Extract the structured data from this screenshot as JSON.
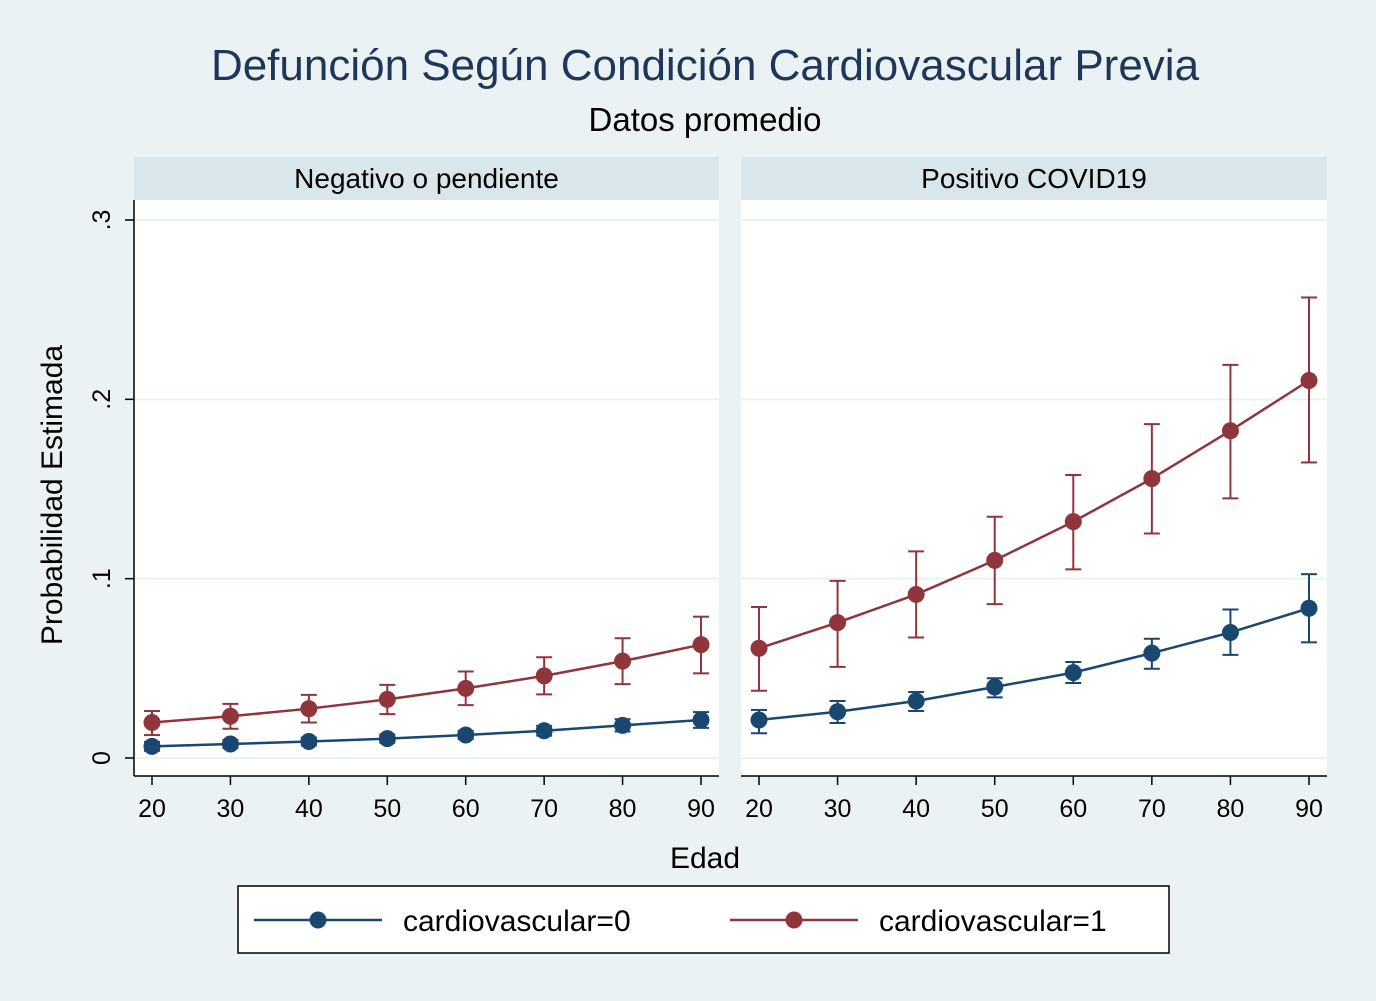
{
  "chart_data": {
    "type": "line",
    "title": "Defunción Según Condición Cardiovascular Previa",
    "subtitle": "Datos promedio",
    "xlabel": "Edad",
    "ylabel": "Probabilidad Estimada",
    "x": [
      20,
      30,
      40,
      50,
      60,
      70,
      80,
      90
    ],
    "xticks": [
      "20",
      "30",
      "40",
      "50",
      "60",
      "70",
      "80",
      "90"
    ],
    "yticks": [
      {
        "value": 0,
        "label": "0"
      },
      {
        "value": 0.1,
        "label": ".1"
      },
      {
        "value": 0.2,
        "label": ".2"
      },
      {
        "value": 0.3,
        "label": ".3"
      }
    ],
    "ylim": [
      -0.01,
      0.33
    ],
    "grid": true,
    "legend_position": "bottom",
    "legend": [
      "cardiovascular=0",
      "cardiovascular=1"
    ],
    "colors": {
      "cardiovascular=0": "#1a476f",
      "cardiovascular=1": "#90353b"
    },
    "panels": [
      {
        "label": "Negativo o pendiente",
        "series": [
          {
            "name": "cardiovascular=0",
            "values": [
              0.0065,
              0.0078,
              0.0092,
              0.0108,
              0.0128,
              0.0152,
              0.0182,
              0.0212
            ],
            "ci_low": [
              0.004,
              0.0055,
              0.007,
              0.0085,
              0.0105,
              0.0125,
              0.0148,
              0.0168
            ],
            "ci_high": [
              0.009,
              0.0101,
              0.0114,
              0.0131,
              0.0151,
              0.0179,
              0.0216,
              0.0256
            ]
          },
          {
            "name": "cardiovascular=1",
            "values": [
              0.0198,
              0.0233,
              0.0275,
              0.0327,
              0.0388,
              0.0458,
              0.054,
              0.0632
            ],
            "ci_low": [
              0.0128,
              0.0163,
              0.0198,
              0.0245,
              0.0295,
              0.0355,
              0.0412,
              0.0472
            ],
            "ci_high": [
              0.0262,
              0.0302,
              0.0352,
              0.0408,
              0.0482,
              0.0562,
              0.0668,
              0.0788
            ]
          }
        ]
      },
      {
        "label": "Positivo COVID19",
        "series": [
          {
            "name": "cardiovascular=0",
            "values": [
              0.0212,
              0.0258,
              0.0318,
              0.0396,
              0.0476,
              0.0585,
              0.07,
              0.0835
            ],
            "ci_low": [
              0.0138,
              0.0195,
              0.0262,
              0.0338,
              0.0418,
              0.0498,
              0.0575,
              0.0645
            ],
            "ci_high": [
              0.0268,
              0.0318,
              0.0368,
              0.0445,
              0.0535,
              0.0665,
              0.0828,
              0.1025
            ]
          },
          {
            "name": "cardiovascular=1",
            "values": [
              0.0612,
              0.0755,
              0.0912,
              0.1102,
              0.1318,
              0.1558,
              0.1825,
              0.2105
            ],
            "ci_low": [
              0.0375,
              0.0508,
              0.0672,
              0.0858,
              0.1052,
              0.1252,
              0.1448,
              0.1648
            ],
            "ci_high": [
              0.0842,
              0.0988,
              0.1152,
              0.1345,
              0.1578,
              0.1862,
              0.2192,
              0.2568
            ]
          }
        ]
      }
    ]
  }
}
